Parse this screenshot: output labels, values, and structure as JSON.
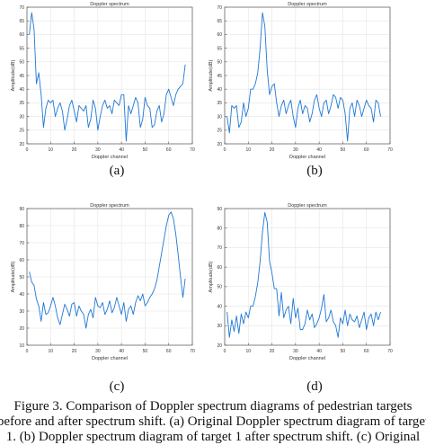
{
  "chart_data": [
    {
      "type": "line",
      "panel_label": "(a)",
      "title": "Doppler spectrum",
      "xlabel": "Doppler channel",
      "ylabel": "Amplitude(dB)",
      "xlim": [
        0,
        70
      ],
      "ylim": [
        20,
        70
      ],
      "xticks": [
        0,
        10,
        20,
        30,
        40,
        50,
        60,
        70
      ],
      "yticks": [
        20,
        25,
        30,
        35,
        40,
        45,
        50,
        55,
        60,
        65,
        70
      ],
      "grid": true,
      "line_color": "#1f77d4",
      "x_start": 1,
      "values": [
        60,
        68,
        62,
        42,
        46,
        38,
        26,
        33,
        36,
        35,
        36,
        30,
        33,
        35,
        32,
        25,
        29,
        34,
        36,
        32,
        28,
        34,
        33,
        32,
        34,
        26,
        29,
        36,
        33,
        25,
        30,
        34,
        36,
        33,
        34,
        31,
        36,
        35,
        34,
        38,
        38,
        21,
        34,
        31,
        34,
        37,
        35,
        26,
        29,
        37,
        34,
        33,
        26,
        27,
        32,
        34,
        28,
        31,
        38,
        40,
        37,
        34,
        38,
        40,
        41,
        42,
        49
      ]
    },
    {
      "type": "line",
      "panel_label": "(b)",
      "title": "Doppler spectrum",
      "xlabel": "Doppler channel",
      "ylabel": "Amplitude(dB)",
      "xlim": [
        0,
        70
      ],
      "ylim": [
        20,
        70
      ],
      "xticks": [
        0,
        10,
        20,
        30,
        40,
        50,
        60,
        70
      ],
      "yticks": [
        20,
        25,
        30,
        35,
        40,
        45,
        50,
        55,
        60,
        65,
        70
      ],
      "grid": true,
      "line_color": "#1f77d4",
      "x_start": 1,
      "values": [
        30,
        24,
        34,
        33,
        34,
        26,
        28,
        35,
        30,
        33,
        40,
        40,
        42,
        46,
        55,
        68,
        63,
        47,
        38,
        41,
        42,
        35,
        30,
        34,
        36,
        31,
        34,
        36,
        30,
        26,
        33,
        36,
        31,
        34,
        33,
        28,
        31,
        36,
        38,
        33,
        30,
        35,
        36,
        31,
        34,
        38,
        37,
        33,
        37,
        36,
        31,
        21,
        33,
        35,
        30,
        36,
        34,
        30,
        33,
        36,
        34,
        33,
        28,
        36,
        35,
        30
      ]
    },
    {
      "type": "line",
      "panel_label": "(c)",
      "title": "Doppler spectrum",
      "xlabel": "Doppler channel",
      "ylabel": "Amplitude(dB)",
      "xlim": [
        0,
        70
      ],
      "ylim": [
        10,
        90
      ],
      "xticks": [
        0,
        10,
        20,
        30,
        40,
        50,
        60,
        70
      ],
      "yticks": [
        10,
        20,
        30,
        40,
        50,
        60,
        70,
        80,
        90
      ],
      "grid": true,
      "line_color": "#1f77d4",
      "x_start": 1,
      "values": [
        53,
        47,
        45,
        37,
        33,
        24,
        35,
        28,
        29,
        33,
        38,
        33,
        26,
        22,
        28,
        34,
        31,
        27,
        34,
        35,
        27,
        33,
        30,
        28,
        20,
        28,
        31,
        26,
        38,
        33,
        32,
        35,
        28,
        31,
        36,
        29,
        32,
        38,
        33,
        28,
        35,
        24,
        31,
        33,
        28,
        35,
        39,
        36,
        40,
        33,
        35,
        38,
        40,
        43,
        48,
        56,
        64,
        72,
        80,
        86,
        88,
        84,
        75,
        63,
        50,
        38,
        49
      ]
    },
    {
      "type": "line",
      "panel_label": "(d)",
      "title": "Doppler spectrum",
      "xlabel": "Doppler channel",
      "ylabel": "Amplitude(dB)",
      "xlim": [
        0,
        70
      ],
      "ylim": [
        20,
        90
      ],
      "xticks": [
        0,
        10,
        20,
        30,
        40,
        50,
        60,
        70
      ],
      "yticks": [
        20,
        30,
        40,
        50,
        60,
        70,
        80,
        90
      ],
      "grid": true,
      "line_color": "#1f77d4",
      "x_start": 1,
      "values": [
        37,
        24,
        33,
        27,
        35,
        26,
        36,
        31,
        37,
        34,
        40,
        40,
        45,
        52,
        63,
        78,
        88,
        83,
        63,
        57,
        49,
        49,
        35,
        47,
        34,
        38,
        40,
        31,
        44,
        34,
        39,
        28,
        28,
        31,
        38,
        33,
        36,
        29,
        31,
        34,
        39,
        46,
        32,
        34,
        38,
        32,
        30,
        24,
        34,
        31,
        38,
        30,
        36,
        33,
        32,
        35,
        29,
        33,
        37,
        28,
        34,
        36,
        30,
        37,
        33,
        37
      ]
    }
  ],
  "caption": {
    "line1": "Figure 3. Comparison of Doppler spectrum diagrams of pedestrian targets",
    "line2": "before and after spectrum shift. (a) Original Doppler spectrum diagram of target",
    "line3": "1. (b) Doppler spectrum diagram of target 1 after spectrum shift. (c) Original"
  }
}
